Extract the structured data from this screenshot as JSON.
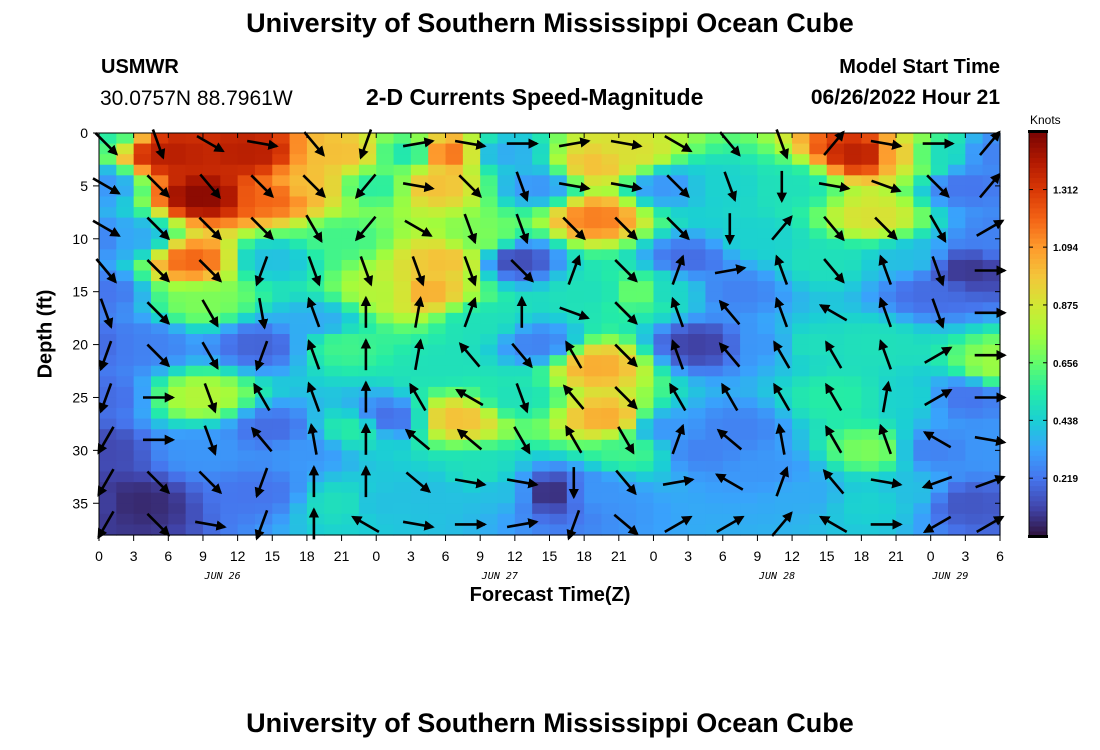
{
  "header": {
    "title": "University of Southern Mississippi Ocean Cube",
    "station_code": "USMWR",
    "station_coords": "30.0757N  88.7961W",
    "plot_title": "2-D Currents Speed-Magnitude",
    "start_label": "Model Start Time",
    "start_value": "06/26/2022 Hour 21"
  },
  "footer": {
    "title": "University of Southern Mississippi Ocean Cube"
  },
  "chart_data": {
    "type": "heatmap",
    "xlabel": "Forecast Time(Z)",
    "ylabel": "Depth (ft)",
    "units": "Knots",
    "x_range_hours": [
      0,
      78
    ],
    "y_range": [
      0,
      38
    ],
    "y_inverted": true,
    "x_ticks": [
      {
        "h": 0,
        "label": "0"
      },
      {
        "h": 3,
        "label": "3"
      },
      {
        "h": 6,
        "label": "6"
      },
      {
        "h": 9,
        "label": "9"
      },
      {
        "h": 12,
        "label": "12"
      },
      {
        "h": 15,
        "label": "15"
      },
      {
        "h": 18,
        "label": "18"
      },
      {
        "h": 21,
        "label": "21"
      },
      {
        "h": 24,
        "label": "0"
      },
      {
        "h": 27,
        "label": "3"
      },
      {
        "h": 30,
        "label": "6"
      },
      {
        "h": 33,
        "label": "9"
      },
      {
        "h": 36,
        "label": "12"
      },
      {
        "h": 39,
        "label": "15"
      },
      {
        "h": 42,
        "label": "18"
      },
      {
        "h": 45,
        "label": "21"
      },
      {
        "h": 48,
        "label": "0"
      },
      {
        "h": 51,
        "label": "3"
      },
      {
        "h": 54,
        "label": "6"
      },
      {
        "h": 57,
        "label": "9"
      },
      {
        "h": 60,
        "label": "12"
      },
      {
        "h": 63,
        "label": "15"
      },
      {
        "h": 66,
        "label": "18"
      },
      {
        "h": 69,
        "label": "21"
      },
      {
        "h": 72,
        "label": "0"
      },
      {
        "h": 75,
        "label": "3"
      },
      {
        "h": 78,
        "label": "6"
      }
    ],
    "date_labels": [
      {
        "h": 12,
        "label": "JUN 26"
      },
      {
        "h": 36,
        "label": "JUN 27"
      },
      {
        "h": 60,
        "label": "JUN 28"
      },
      {
        "h": 75,
        "label": "JUN 29"
      }
    ],
    "y_ticks": [
      0,
      5,
      10,
      15,
      20,
      25,
      30,
      35
    ],
    "colorbar_ticks": [
      0.219,
      0.438,
      0.656,
      0.875,
      1.094,
      1.312
    ],
    "colorbar_range": [
      0,
      1.53
    ],
    "colors": [
      "#30123b",
      "#4145ab",
      "#4675ed",
      "#39a2fc",
      "#1bcfd4",
      "#24eca6",
      "#61fc6c",
      "#a4fc3b",
      "#d1e834",
      "#f3c63a",
      "#fe9b2d",
      "#f36315",
      "#d93806",
      "#b11901",
      "#7a0403"
    ],
    "speed_field": [
      {
        "t": 0,
        "d": 0,
        "v": 0.55
      },
      {
        "t": 0,
        "d": 5,
        "v": 0.3
      },
      {
        "t": 0,
        "d": 10,
        "v": 0.25
      },
      {
        "t": 0,
        "d": 15,
        "v": 0.22
      },
      {
        "t": 0,
        "d": 20,
        "v": 0.2
      },
      {
        "t": 0,
        "d": 25,
        "v": 0.2
      },
      {
        "t": 0,
        "d": 30,
        "v": 0.12
      },
      {
        "t": 0,
        "d": 35,
        "v": 0.1
      },
      {
        "t": 6,
        "d": 2,
        "v": 1.4
      },
      {
        "t": 9,
        "d": 6,
        "v": 1.5
      },
      {
        "t": 8,
        "d": 12,
        "v": 1.2
      },
      {
        "t": 9,
        "d": 16,
        "v": 0.7
      },
      {
        "t": 9,
        "d": 25,
        "v": 0.8
      },
      {
        "t": 9,
        "d": 30,
        "v": 0.3
      },
      {
        "t": 3,
        "d": 35,
        "v": 0.05
      },
      {
        "t": 4,
        "d": 20,
        "v": 0.25
      },
      {
        "t": 3,
        "d": 10,
        "v": 0.35
      },
      {
        "t": 13,
        "d": 2,
        "v": 1.4
      },
      {
        "t": 15,
        "d": 6,
        "v": 1.2
      },
      {
        "t": 15,
        "d": 12,
        "v": 0.4
      },
      {
        "t": 14,
        "d": 20,
        "v": 0.18
      },
      {
        "t": 15,
        "d": 28,
        "v": 0.2
      },
      {
        "t": 14,
        "d": 34,
        "v": 0.22
      },
      {
        "t": 18,
        "d": 5,
        "v": 1.0
      },
      {
        "t": 19,
        "d": 18,
        "v": 0.35
      },
      {
        "t": 18,
        "d": 30,
        "v": 0.3
      },
      {
        "t": 21,
        "d": 2,
        "v": 1.0
      },
      {
        "t": 21,
        "d": 10,
        "v": 0.6
      },
      {
        "t": 21,
        "d": 20,
        "v": 0.6
      },
      {
        "t": 22,
        "d": 28,
        "v": 0.55
      },
      {
        "t": 21,
        "d": 35,
        "v": 0.5
      },
      {
        "t": 24,
        "d": 5,
        "v": 0.55
      },
      {
        "t": 25,
        "d": 15,
        "v": 0.8
      },
      {
        "t": 25,
        "d": 27,
        "v": 0.2
      },
      {
        "t": 24,
        "d": 35,
        "v": 0.4
      },
      {
        "t": 27,
        "d": 2,
        "v": 0.5
      },
      {
        "t": 28,
        "d": 15,
        "v": 1.05
      },
      {
        "t": 29,
        "d": 5,
        "v": 1.0
      },
      {
        "t": 30,
        "d": 2,
        "v": 1.2
      },
      {
        "t": 30,
        "d": 12,
        "v": 1.0
      },
      {
        "t": 30,
        "d": 22,
        "v": 0.5
      },
      {
        "t": 31,
        "d": 27,
        "v": 1.0
      },
      {
        "t": 29,
        "d": 34,
        "v": 0.4
      },
      {
        "t": 33,
        "d": 10,
        "v": 0.7
      },
      {
        "t": 33,
        "d": 18,
        "v": 0.5
      },
      {
        "t": 33,
        "d": 32,
        "v": 0.5
      },
      {
        "t": 35,
        "d": 2,
        "v": 0.35
      },
      {
        "t": 36,
        "d": 12,
        "v": 0.12
      },
      {
        "t": 36,
        "d": 25,
        "v": 0.5
      },
      {
        "t": 35,
        "d": 34,
        "v": 0.4
      },
      {
        "t": 38,
        "d": 5,
        "v": 0.3
      },
      {
        "t": 38,
        "d": 20,
        "v": 0.25
      },
      {
        "t": 39,
        "d": 34,
        "v": 0.05
      },
      {
        "t": 43,
        "d": 3,
        "v": 1.0
      },
      {
        "t": 43,
        "d": 8,
        "v": 1.15
      },
      {
        "t": 43,
        "d": 15,
        "v": 0.5
      },
      {
        "t": 43,
        "d": 22,
        "v": 1.05
      },
      {
        "t": 44,
        "d": 27,
        "v": 1.05
      },
      {
        "t": 43,
        "d": 34,
        "v": 0.3
      },
      {
        "t": 46,
        "d": 2,
        "v": 0.9
      },
      {
        "t": 47,
        "d": 15,
        "v": 0.7
      },
      {
        "t": 46,
        "d": 30,
        "v": 0.6
      },
      {
        "t": 49,
        "d": 5,
        "v": 0.3
      },
      {
        "t": 49,
        "d": 15,
        "v": 0.45
      },
      {
        "t": 49,
        "d": 28,
        "v": 0.3
      },
      {
        "t": 51,
        "d": 12,
        "v": 0.2
      },
      {
        "t": 52,
        "d": 20,
        "v": 0.1
      },
      {
        "t": 52,
        "d": 30,
        "v": 0.25
      },
      {
        "t": 54,
        "d": 5,
        "v": 0.45
      },
      {
        "t": 55,
        "d": 15,
        "v": 0.25
      },
      {
        "t": 55,
        "d": 28,
        "v": 0.25
      },
      {
        "t": 57,
        "d": 10,
        "v": 0.45
      },
      {
        "t": 58,
        "d": 20,
        "v": 0.3
      },
      {
        "t": 58,
        "d": 32,
        "v": 0.3
      },
      {
        "t": 60,
        "d": 5,
        "v": 0.5
      },
      {
        "t": 61,
        "d": 20,
        "v": 0.5
      },
      {
        "t": 61,
        "d": 34,
        "v": 0.35
      },
      {
        "t": 63,
        "d": 12,
        "v": 0.5
      },
      {
        "t": 64,
        "d": 25,
        "v": 0.55
      },
      {
        "t": 66,
        "d": 2,
        "v": 1.4
      },
      {
        "t": 67,
        "d": 8,
        "v": 0.9
      },
      {
        "t": 67,
        "d": 20,
        "v": 0.5
      },
      {
        "t": 67,
        "d": 30,
        "v": 0.7
      },
      {
        "t": 67,
        "d": 35,
        "v": 0.45
      },
      {
        "t": 70,
        "d": 2,
        "v": 1.0
      },
      {
        "t": 70,
        "d": 12,
        "v": 0.4
      },
      {
        "t": 70,
        "d": 25,
        "v": 0.45
      },
      {
        "t": 70,
        "d": 34,
        "v": 0.4
      },
      {
        "t": 72,
        "d": 2,
        "v": 0.45
      },
      {
        "t": 72,
        "d": 15,
        "v": 0.2
      },
      {
        "t": 72,
        "d": 30,
        "v": 0.25
      },
      {
        "t": 75,
        "d": 5,
        "v": 0.22
      },
      {
        "t": 75,
        "d": 13,
        "v": 0.08
      },
      {
        "t": 75,
        "d": 25,
        "v": 0.22
      },
      {
        "t": 75,
        "d": 35,
        "v": 0.15
      },
      {
        "t": 78,
        "d": 2,
        "v": 0.25
      },
      {
        "t": 78,
        "d": 10,
        "v": 0.25
      },
      {
        "t": 78,
        "d": 22,
        "v": 0.75
      },
      {
        "t": 78,
        "d": 30,
        "v": 0.3
      }
    ],
    "vectors": {
      "times": [
        0,
        4.5,
        9,
        13.5,
        18,
        22.5,
        27,
        31.5,
        36,
        40.5,
        45,
        49.5,
        54,
        58.5,
        63,
        67.5,
        72,
        76.5
      ],
      "depths": [
        1,
        5,
        9,
        13,
        17,
        21,
        25,
        29,
        33,
        37
      ],
      "directions_deg": [
        [
          135,
          120,
          120,
          140,
          160,
          200,
          200,
          210,
          210,
          210
        ],
        [
          160,
          135,
          135,
          135,
          135,
          135,
          90,
          90,
          135,
          135
        ],
        [
          120,
          140,
          135,
          135,
          150,
          150,
          160,
          160,
          135,
          100
        ],
        [
          100,
          135,
          135,
          200,
          170,
          200,
          330,
          320,
          200,
          200
        ],
        [
          140,
          135,
          150,
          160,
          340,
          340,
          340,
          350,
          360,
          360
        ],
        [
          200,
          220,
          220,
          160,
          360,
          360,
          360,
          360,
          360,
          300
        ],
        [
          80,
          100,
          120,
          160,
          10,
          10,
          330,
          310,
          130,
          100
        ],
        [
          100,
          135,
          160,
          160,
          20,
          320,
          300,
          310,
          100,
          90
        ],
        [
          90,
          160,
          160,
          135,
          360,
          140,
          160,
          150,
          100,
          80
        ],
        [
          80,
          100,
          135,
          20,
          110,
          330,
          320,
          330,
          180,
          200
        ],
        [
          100,
          100,
          135,
          135,
          135,
          135,
          135,
          150,
          140,
          130
        ],
        [
          120,
          135,
          135,
          20,
          340,
          340,
          330,
          20,
          80,
          60
        ],
        [
          140,
          160,
          180,
          80,
          320,
          320,
          330,
          310,
          300,
          60
        ],
        [
          160,
          180,
          40,
          340,
          340,
          330,
          330,
          350,
          20,
          40
        ],
        [
          40,
          100,
          140,
          140,
          300,
          330,
          330,
          330,
          320,
          300
        ],
        [
          100,
          110,
          135,
          340,
          340,
          340,
          10,
          340,
          100,
          90
        ],
        [
          90,
          135,
          150,
          160,
          160,
          60,
          60,
          300,
          250,
          240
        ],
        [
          40,
          40,
          60,
          90,
          90,
          90,
          90,
          100,
          70,
          60
        ]
      ]
    }
  }
}
